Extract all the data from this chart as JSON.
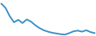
{
  "x": [
    0,
    1,
    2,
    3,
    4,
    5,
    6,
    7,
    8,
    9,
    10,
    11,
    12,
    13,
    14,
    15,
    16,
    17,
    18,
    19,
    20,
    21,
    22
  ],
  "y": [
    10.0,
    8.8,
    6.5,
    4.8,
    5.5,
    4.6,
    5.6,
    5.0,
    4.0,
    3.2,
    2.6,
    2.2,
    1.9,
    1.7,
    1.5,
    1.4,
    1.8,
    2.3,
    2.5,
    2.2,
    2.6,
    2.1,
    1.8
  ],
  "line_color": "#3a8fc7",
  "linewidth": 1.4,
  "background_color": "#ffffff",
  "ylim": [
    1.0,
    11.0
  ],
  "xlim": [
    -0.3,
    22.3
  ]
}
